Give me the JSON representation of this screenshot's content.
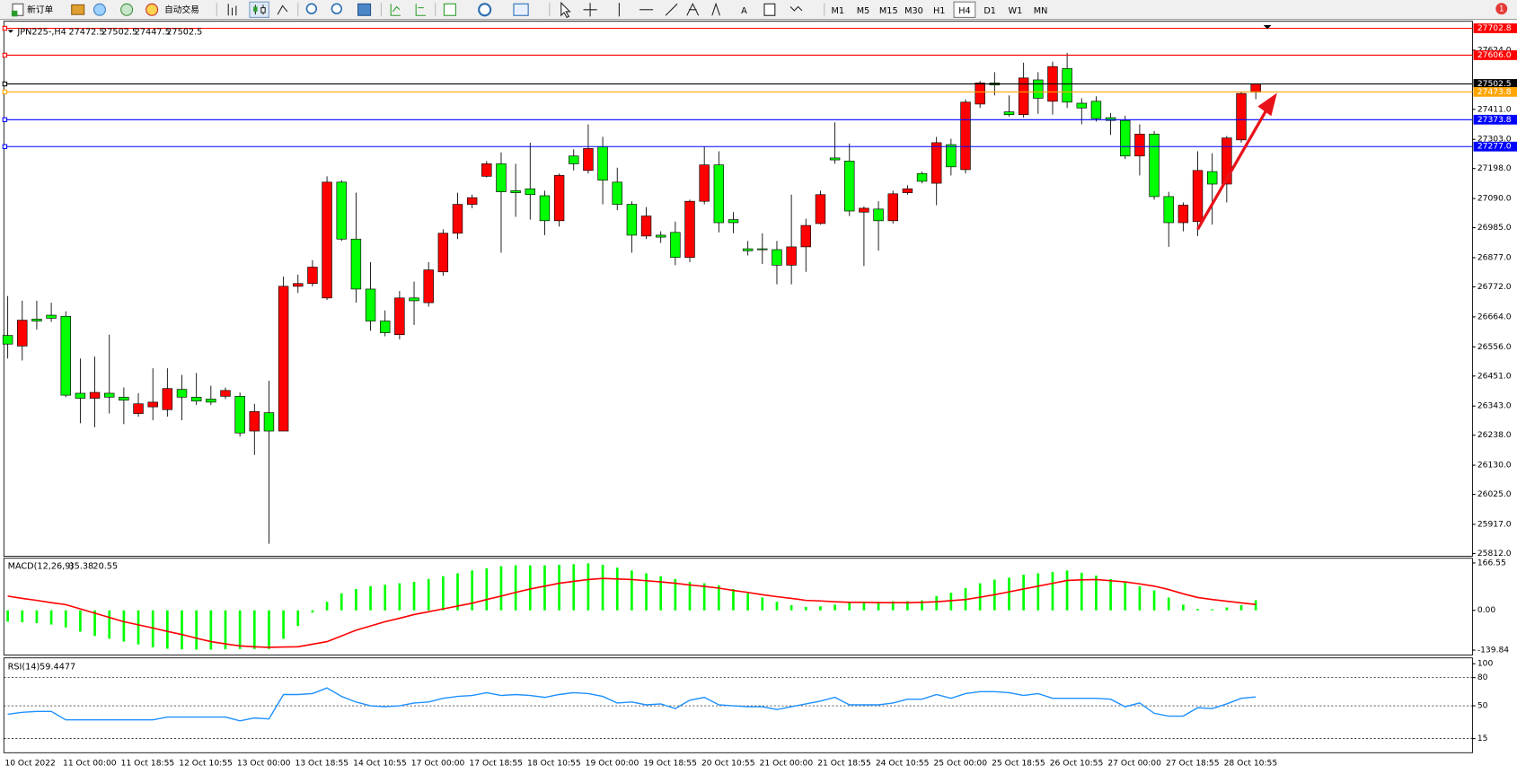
{
  "toolbar": {
    "new_order": "新订单",
    "auto_trading": "自动交易",
    "timeframes": [
      "M1",
      "M5",
      "M15",
      "M30",
      "H1",
      "H4",
      "D1",
      "W1",
      "MN"
    ],
    "active_timeframe": "H4",
    "notifications": 1
  },
  "chart_data": [
    {
      "type": "candlestick",
      "symbol": "JPN225-,H4",
      "up_color": "#ff0000",
      "down_color": "#00ff00",
      "ylim": [
        25802,
        27728
      ],
      "yticks": [
        {
          "value": 27624,
          "label": "27624.0"
        },
        {
          "value": 27411,
          "label": "27411.0"
        },
        {
          "value": 27303,
          "label": "27303.0"
        },
        {
          "value": 27198,
          "label": "27198.0"
        },
        {
          "value": 27090,
          "label": "27090.0"
        },
        {
          "value": 26985,
          "label": "26985.0"
        },
        {
          "value": 26877,
          "label": "26877.0"
        },
        {
          "value": 26772,
          "label": "26772.0"
        },
        {
          "value": 26664,
          "label": "26664.0"
        },
        {
          "value": 26556,
          "label": "26556.0"
        },
        {
          "value": 26451,
          "label": "26451.0"
        },
        {
          "value": 26343,
          "label": "26343.0"
        },
        {
          "value": 26238,
          "label": "26238.0"
        },
        {
          "value": 26130,
          "label": "26130.0"
        },
        {
          "value": 26025,
          "label": "26025.0"
        },
        {
          "value": 25917,
          "label": "25917.0"
        },
        {
          "value": 25812,
          "label": "25812.0"
        }
      ],
      "levels": [
        {
          "value": 27702.8,
          "color": "#ff0000"
        },
        {
          "value": 27606,
          "label": "27606.0",
          "color": "#ff0000"
        },
        {
          "value": 27502.5,
          "color": "#000000"
        },
        {
          "value": 27473.8,
          "color": "#ffa500"
        },
        {
          "value": 27373.8,
          "color": "#0000ff"
        },
        {
          "value": 27277,
          "label": "27277.0",
          "color": "#0000ff"
        }
      ],
      "categories": [
        "10 Oct 2022",
        null,
        null,
        null,
        "11 Oct 00:00",
        null,
        null,
        null,
        "11 Oct 18:55",
        null,
        null,
        null,
        "12 Oct 10:55",
        null,
        null,
        null,
        "13 Oct 00:00",
        null,
        null,
        null,
        "13 Oct 18:55",
        null,
        null,
        null,
        "14 Oct 10:55",
        null,
        null,
        null,
        "17 Oct 00:00",
        null,
        null,
        null,
        "17 Oct 18:55",
        null,
        null,
        null,
        "18 Oct 10:55",
        null,
        null,
        null,
        "19 Oct 00:00",
        null,
        null,
        null,
        "19 Oct 18:55",
        null,
        null,
        null,
        "20 Oct 10:55",
        null,
        null,
        null,
        "21 Oct 00:00",
        null,
        null,
        null,
        "21 Oct 18:55",
        null,
        null,
        null,
        "24 Oct 10:55",
        null,
        null,
        null,
        "25 Oct 00:00",
        null,
        null,
        null,
        "25 Oct 18:55",
        null,
        null,
        null,
        "26 Oct 10:55",
        null,
        null,
        null,
        "27 Oct 00:00",
        null,
        null,
        null,
        "27 Oct 18:55",
        null,
        null,
        null,
        "28 Oct 10:55",
        null,
        null
      ],
      "open": [
        26597,
        26559,
        26656,
        26670,
        26666,
        26389,
        26371,
        26389,
        26375,
        26316,
        26340,
        26330,
        26403,
        26375,
        26368,
        26378,
        26378,
        26253,
        26319,
        26253,
        26774,
        26784,
        26732,
        27149,
        26944,
        26764,
        26649,
        26600,
        26732,
        26715,
        26826,
        26965,
        27069,
        27170,
        27215,
        27118,
        27125,
        27100,
        27010,
        27243,
        27191,
        27277,
        27149,
        27069,
        26955,
        26958,
        26968,
        26878,
        27080,
        27211,
        27014,
        26909,
        26909,
        26906,
        26850,
        26916,
        27000,
        27236,
        27225,
        27041,
        27052,
        27010,
        27111,
        27180,
        27145,
        27284,
        27194,
        27430,
        27506,
        27402,
        27392,
        27517,
        27440,
        27558,
        27433,
        27440,
        27381,
        27371,
        27243,
        27322,
        27097,
        27003,
        27007,
        27187,
        27142,
        27301,
        27472.5
      ],
      "high": [
        26739,
        26722,
        26722,
        26715,
        26684,
        26514,
        26521,
        26600,
        26410,
        26389,
        26479,
        26479,
        26455,
        26462,
        26416,
        26410,
        26392,
        26351,
        26434,
        26809,
        26816,
        26868,
        27170,
        27156,
        27111,
        26861,
        26687,
        26757,
        26791,
        26861,
        26979,
        27111,
        27104,
        27225,
        27256,
        27215,
        27291,
        27118,
        27180,
        27267,
        27357,
        27312,
        27201,
        27080,
        27059,
        26972,
        27007,
        27086,
        27277,
        27260,
        27041,
        26937,
        26965,
        26937,
        27104,
        27017,
        27118,
        27364,
        27288,
        27062,
        27080,
        27118,
        27138,
        27187,
        27312,
        27305,
        27447,
        27513,
        27545,
        27461,
        27579,
        27545,
        27583,
        27614,
        27451,
        27458,
        27398,
        27388,
        27357,
        27333,
        27114,
        27076,
        27260,
        27253,
        27315,
        27475,
        27502.5
      ],
      "low": [
        26514,
        26507,
        26618,
        26646,
        26375,
        26281,
        26267,
        26316,
        26278,
        26305,
        26292,
        26305,
        26292,
        26347,
        26347,
        26368,
        26233,
        26167,
        25847,
        26253,
        26750,
        26774,
        26725,
        26937,
        26715,
        26614,
        26594,
        26583,
        26635,
        26701,
        26812,
        26944,
        27055,
        27166,
        26895,
        27024,
        27014,
        26958,
        26989,
        27191,
        27180,
        27069,
        27048,
        26895,
        26944,
        26930,
        26850,
        26861,
        27069,
        26968,
        26965,
        26885,
        26854,
        26781,
        26781,
        26826,
        26996,
        27215,
        27027,
        26847,
        26902,
        27000,
        27104,
        27145,
        27066,
        27173,
        27180,
        27416,
        27461,
        27385,
        27381,
        27395,
        27392,
        27416,
        27357,
        27367,
        27319,
        27232,
        27173,
        27086,
        26916,
        26972,
        26955,
        26996,
        27076,
        27291,
        27447.5
      ],
      "close": [
        26566,
        26652,
        26649,
        26659,
        26382,
        26371,
        26392,
        26375,
        26364,
        26351,
        26357,
        26406,
        26375,
        26361,
        26357,
        26399,
        26246,
        26323,
        26253,
        26774,
        26784,
        26843,
        27149,
        26944,
        26764,
        26649,
        26607,
        26732,
        26722,
        26833,
        26965,
        27069,
        27093,
        27215,
        27114,
        27111,
        27104,
        27010,
        27173,
        27215,
        27270,
        27156,
        27069,
        26958,
        27027,
        26951,
        26878,
        27080,
        27211,
        27003,
        27003,
        26902,
        26906,
        26850,
        26916,
        26993,
        27104,
        27229,
        27045,
        27055,
        27010,
        27107,
        27125,
        27152,
        27291,
        27204,
        27437,
        27506,
        27499,
        27392,
        27524,
        27451,
        27565,
        27437,
        27416,
        27378,
        27371,
        27243,
        27322,
        27097,
        27003,
        27066,
        27191,
        27142,
        27308,
        27468,
        27502.5
      ]
    },
    {
      "type": "macd",
      "title": "MACD(12,26,9)",
      "ylim": [
        -157,
        183
      ],
      "yticks": [
        166.55,
        {
          "value": 0,
          "label": "0.00"
        },
        -139.84
      ],
      "histogram": {
        "color": "#00ff00",
        "values": [
          -40,
          -42,
          -45,
          -50,
          -60,
          -75,
          -90,
          -100,
          -110,
          -120,
          -130,
          -135,
          -137,
          -138,
          -138,
          -137,
          -136,
          -136,
          -136,
          -100,
          -55,
          -8,
          30,
          60,
          75,
          85,
          90,
          95,
          100,
          110,
          120,
          130,
          140,
          148,
          155,
          158,
          158,
          158,
          160,
          162,
          165,
          160,
          150,
          140,
          130,
          120,
          110,
          100,
          95,
          88,
          75,
          60,
          45,
          30,
          18,
          12,
          14,
          20,
          28,
          30,
          30,
          32,
          32,
          35,
          50,
          62,
          78,
          95,
          108,
          115,
          125,
          130,
          135,
          140,
          132,
          122,
          110,
          98,
          85,
          70,
          45,
          20,
          5,
          4,
          10,
          18,
          35.38
        ]
      },
      "signal": {
        "color": "#ff0000",
        "values": [
          50,
          42,
          35,
          27,
          20,
          5,
          -10,
          -25,
          -40,
          -51,
          -62,
          -74,
          -85,
          -98,
          -110,
          -118,
          -125,
          -128,
          -130,
          -129,
          -128,
          -119,
          -110,
          -90,
          -70,
          -55,
          -40,
          -28,
          -15,
          -5,
          5,
          15,
          25,
          38,
          50,
          63,
          75,
          85,
          95,
          102,
          108,
          112,
          110,
          108,
          104,
          100,
          95,
          89,
          84,
          78,
          70,
          63,
          55,
          48,
          42,
          35,
          33,
          30,
          28,
          28,
          27,
          27,
          27,
          28,
          30,
          34,
          38,
          46,
          55,
          65,
          75,
          85,
          95,
          105,
          107,
          108,
          104,
          100,
          93,
          85,
          73,
          58,
          45,
          38,
          32,
          26,
          20.55
        ]
      }
    },
    {
      "type": "line",
      "title": "RSI(14)",
      "color": "#1e90ff",
      "ylim": [
        0,
        100
      ],
      "yticks": [
        100,
        80,
        50,
        15
      ],
      "values": [
        41,
        43,
        44,
        44,
        35,
        35,
        35,
        35,
        35,
        35,
        35,
        38,
        38,
        38,
        38,
        38,
        34,
        37,
        36,
        62,
        62,
        63,
        69,
        60,
        54,
        50,
        49,
        50,
        53,
        54,
        58,
        60,
        61,
        64,
        61,
        62,
        61,
        59,
        62,
        64,
        63,
        60,
        53,
        54,
        51,
        52,
        47,
        56,
        59,
        51,
        50,
        49,
        49,
        46,
        49,
        52,
        55,
        59,
        51,
        51,
        51,
        53,
        57,
        57,
        62,
        58,
        63,
        65,
        65,
        64,
        61,
        63,
        58,
        58,
        58,
        58,
        57,
        49,
        53,
        42,
        39,
        39,
        48,
        47,
        52,
        58,
        59.4477
      ]
    }
  ]
}
